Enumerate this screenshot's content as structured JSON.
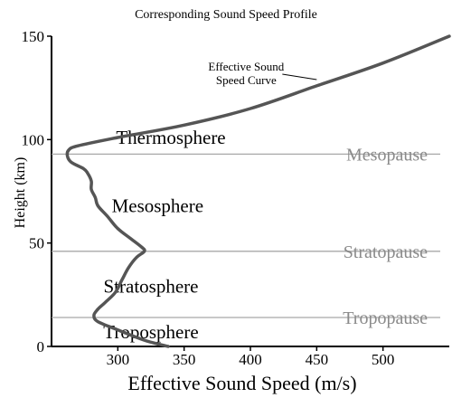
{
  "chart_data": {
    "type": "line",
    "title": "Corresponding Sound Speed Profile",
    "xlabel": "Effective Sound Speed (m/s)",
    "ylabel": "Height (km)",
    "xlim": [
      250,
      550
    ],
    "ylim": [
      0,
      150
    ],
    "x_ticks": [
      300,
      350,
      400,
      450,
      500
    ],
    "y_ticks": [
      0,
      50,
      100,
      150
    ],
    "grid": false,
    "series": [
      {
        "line_color": "#555555",
        "points": [
          {
            "x": 338,
            "y": 0
          },
          {
            "x": 320,
            "y": 3
          },
          {
            "x": 300,
            "y": 8
          },
          {
            "x": 285,
            "y": 12
          },
          {
            "x": 282,
            "y": 15
          },
          {
            "x": 285,
            "y": 18
          },
          {
            "x": 290,
            "y": 21
          },
          {
            "x": 298,
            "y": 26
          },
          {
            "x": 303,
            "y": 32
          },
          {
            "x": 308,
            "y": 38
          },
          {
            "x": 314,
            "y": 43
          },
          {
            "x": 320,
            "y": 46
          },
          {
            "x": 318,
            "y": 48
          },
          {
            "x": 310,
            "y": 52
          },
          {
            "x": 300,
            "y": 57
          },
          {
            "x": 292,
            "y": 63
          },
          {
            "x": 285,
            "y": 68
          },
          {
            "x": 283,
            "y": 72
          },
          {
            "x": 280,
            "y": 76
          },
          {
            "x": 280,
            "y": 80
          },
          {
            "x": 277,
            "y": 84
          },
          {
            "x": 274,
            "y": 86
          },
          {
            "x": 265,
            "y": 89
          },
          {
            "x": 262,
            "y": 92
          },
          {
            "x": 263,
            "y": 95
          },
          {
            "x": 270,
            "y": 97
          },
          {
            "x": 300,
            "y": 101
          },
          {
            "x": 350,
            "y": 107
          },
          {
            "x": 400,
            "y": 115
          },
          {
            "x": 450,
            "y": 126
          },
          {
            "x": 500,
            "y": 137
          },
          {
            "x": 550,
            "y": 150
          }
        ]
      }
    ],
    "reference_lines": [
      {
        "y": 93,
        "label": "Mesopause"
      },
      {
        "y": 46,
        "label": "Stratopause"
      },
      {
        "y": 14,
        "label": "Tropopause"
      }
    ],
    "region_labels": [
      {
        "text": "Thermosphere",
        "x": 340,
        "y": 101
      },
      {
        "text": "Mesosphere",
        "x": 330,
        "y": 68
      },
      {
        "text": "Stratosphere",
        "x": 325,
        "y": 29
      },
      {
        "text": "Troposphere",
        "x": 325,
        "y": 7
      }
    ],
    "annotation": {
      "lines": [
        "Effective Sound",
        "Speed Curve"
      ],
      "point_x": 450,
      "point_y": 129
    },
    "colors": {
      "curve": "#555555",
      "reference_line": "#a8a8a8",
      "reference_label": "#8a8a8a",
      "text": "#000000"
    }
  }
}
